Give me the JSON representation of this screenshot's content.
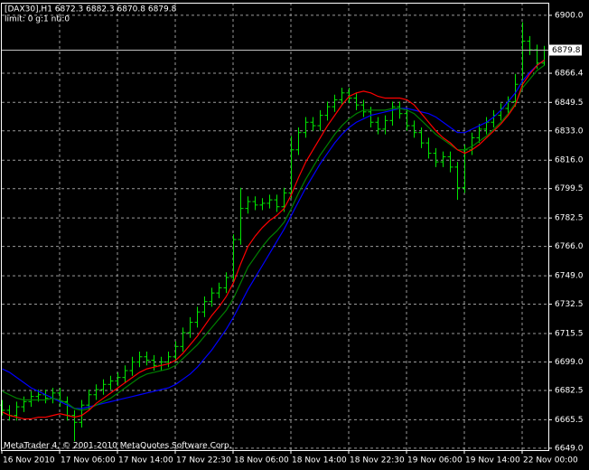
{
  "chart_data": {
    "type": "ohlc",
    "header": "[DAX30],H1  6872.3 6882.3 6870.8 6879.8",
    "subheader": "limit: 0 g:1 nti:0",
    "footer": "MetaTrader 4, © 2001-2010 MetaQuotes Software Corp.",
    "categories": [
      "16 Nov 2010",
      null,
      null,
      null,
      null,
      null,
      null,
      null,
      "17 Nov 06:00",
      null,
      null,
      null,
      null,
      null,
      null,
      null,
      "17 Nov 14:00",
      null,
      null,
      null,
      null,
      null,
      null,
      null,
      "17 Nov 22:30",
      null,
      null,
      null,
      null,
      null,
      null,
      null,
      "18 Nov 06:00",
      null,
      null,
      null,
      null,
      null,
      null,
      null,
      "18 Nov 14:00",
      null,
      null,
      null,
      null,
      null,
      null,
      null,
      "18 Nov 22:30",
      null,
      null,
      null,
      null,
      null,
      null,
      null,
      "19 Nov 06:00",
      null,
      null,
      null,
      null,
      null,
      null,
      null,
      "19 Nov 14:00",
      null,
      null,
      null,
      null,
      null,
      null,
      null,
      "22 Nov 00:00",
      null,
      null,
      null
    ],
    "open": [
      6674,
      6671,
      6668,
      6673,
      6676,
      6679,
      6680,
      6678,
      6681,
      6676,
      6668,
      6664,
      6674,
      6680,
      6683,
      6686,
      6688,
      6690,
      6694,
      6699,
      6702,
      6700,
      6697,
      6699,
      6702,
      6708,
      6716,
      6722,
      6728,
      6734,
      6739,
      6742,
      6748,
      6770,
      6788,
      6792,
      6790,
      6791,
      6793,
      6789,
      6797,
      6822,
      6832,
      6838,
      6836,
      6842,
      6847,
      6851,
      6855,
      6852,
      6848,
      6844,
      6838,
      6834,
      6839,
      6847,
      6843,
      6836,
      6832,
      6826,
      6820,
      6815,
      6818,
      6812,
      6800,
      6822,
      6829,
      6834,
      6838,
      6842,
      6846,
      6850,
      6860,
      6885,
      6880,
      6872.3
    ],
    "high": [
      6677,
      6674,
      6676,
      6679,
      6682,
      6683,
      6683,
      6684,
      6684,
      6679,
      6671,
      6677,
      6683,
      6686,
      6689,
      6691,
      6693,
      6697,
      6702,
      6705,
      6705,
      6703,
      6702,
      6705,
      6711,
      6719,
      6725,
      6731,
      6737,
      6742,
      6745,
      6751,
      6773,
      6800,
      6795,
      6795,
      6794,
      6796,
      6796,
      6800,
      6830,
      6835,
      6841,
      6841,
      6845,
      6850,
      6854,
      6858,
      6858,
      6855,
      6851,
      6847,
      6841,
      6842,
      6850,
      6850,
      6846,
      6839,
      6835,
      6829,
      6823,
      6821,
      6821,
      6815,
      6825,
      6832,
      6837,
      6841,
      6845,
      6849,
      6853,
      6866,
      6896,
      6888,
      6883,
      6882.3
    ],
    "low": [
      6668,
      6665,
      6665,
      6670,
      6673,
      6676,
      6675,
      6675,
      6673,
      6665,
      6653,
      6661,
      6671,
      6677,
      6680,
      6683,
      6685,
      6687,
      6691,
      6696,
      6697,
      6694,
      6694,
      6696,
      6699,
      6705,
      6713,
      6719,
      6725,
      6731,
      6736,
      6739,
      6745,
      6767,
      6785,
      6787,
      6787,
      6788,
      6786,
      6786,
      6794,
      6819,
      6829,
      6833,
      6833,
      6839,
      6844,
      6848,
      6849,
      6845,
      6841,
      6835,
      6831,
      6831,
      6836,
      6840,
      6833,
      6829,
      6823,
      6817,
      6812,
      6812,
      6809,
      6793,
      6797,
      6819,
      6826,
      6831,
      6835,
      6839,
      6843,
      6847,
      6857,
      6877,
      6869,
      6870.8
    ],
    "close": [
      6671,
      6668,
      6673,
      6676,
      6679,
      6680,
      6678,
      6681,
      6676,
      6668,
      6664,
      6674,
      6680,
      6683,
      6686,
      6688,
      6690,
      6694,
      6699,
      6702,
      6700,
      6697,
      6699,
      6702,
      6708,
      6716,
      6722,
      6728,
      6734,
      6739,
      6742,
      6748,
      6770,
      6788,
      6792,
      6790,
      6791,
      6793,
      6789,
      6797,
      6822,
      6832,
      6838,
      6836,
      6842,
      6847,
      6851,
      6855,
      6852,
      6848,
      6844,
      6838,
      6834,
      6839,
      6847,
      6843,
      6836,
      6832,
      6826,
      6820,
      6815,
      6818,
      6812,
      6800,
      6822,
      6829,
      6834,
      6838,
      6842,
      6846,
      6850,
      6860,
      6885,
      6880,
      6872.3,
      6879.8
    ],
    "bar_color": "#00e600",
    "series": [
      {
        "color": "#0000ff",
        "values": [
          6695,
          6693,
          6690,
          6687,
          6684,
          6682,
          6680,
          6678,
          6676,
          6674,
          6672,
          6672,
          6673,
          6674,
          6675,
          6676,
          6677,
          6678,
          6679,
          6680,
          6681,
          6682,
          6683,
          6684,
          6686,
          6689,
          6692,
          6696,
          6701,
          6706,
          6712,
          6718,
          6725,
          6733,
          6741,
          6748,
          6755,
          6762,
          6769,
          6776,
          6784,
          6792,
          6800,
          6807,
          6814,
          6820,
          6826,
          6831,
          6835,
          6838,
          6840,
          6842,
          6843,
          6844,
          6845,
          6846,
          6846,
          6845,
          6844,
          6843,
          6841,
          6838,
          6835,
          6832,
          6832,
          6834,
          6836,
          6838,
          6841,
          6845,
          6850,
          6855,
          6862,
          6867,
          6871,
          6874
        ]
      },
      {
        "color": "#008000",
        "values": [
          6682,
          6680,
          6678,
          6677,
          6677,
          6677,
          6677,
          6678,
          6677,
          6675,
          6672,
          6671,
          6672,
          6674,
          6676,
          6678,
          6681,
          6684,
          6687,
          6690,
          6692,
          6693,
          6694,
          6695,
          6697,
          6701,
          6705,
          6709,
          6714,
          6719,
          6724,
          6729,
          6736,
          6745,
          6754,
          6760,
          6766,
          6771,
          6775,
          6780,
          6788,
          6797,
          6805,
          6812,
          6819,
          6825,
          6831,
          6836,
          6840,
          6843,
          6845,
          6845,
          6845,
          6845,
          6846,
          6846,
          6845,
          6843,
          6839,
          6835,
          6831,
          6828,
          6825,
          6822,
          6822,
          6824,
          6827,
          6830,
          6834,
          6838,
          6843,
          6849,
          6858,
          6863,
          6868,
          6871
        ]
      },
      {
        "color": "#ff0000",
        "values": [
          6670,
          6668,
          6667,
          6666,
          6666,
          6667,
          6667,
          6668,
          6669,
          6668,
          6667,
          6668,
          6671,
          6675,
          6678,
          6681,
          6684,
          6687,
          6690,
          6693,
          6695,
          6696,
          6697,
          6698,
          6700,
          6704,
          6709,
          6714,
          6720,
          6726,
          6731,
          6737,
          6745,
          6756,
          6766,
          6772,
          6777,
          6781,
          6784,
          6788,
          6796,
          6806,
          6815,
          6822,
          6829,
          6836,
          6842,
          6848,
          6853,
          6855,
          6856,
          6855,
          6853,
          6852,
          6852,
          6852,
          6851,
          6848,
          6843,
          6838,
          6833,
          6829,
          6826,
          6822,
          6820,
          6822,
          6825,
          6829,
          6833,
          6837,
          6842,
          6848,
          6860,
          6866,
          6871,
          6874
        ]
      }
    ],
    "bid_line": 6879.8,
    "ylim": [
      6647.9,
      6907.3
    ],
    "yticks": [
      {
        "value": 6900,
        "label": "6900.0"
      },
      {
        "value": 6866.4,
        "label": "6866.4"
      },
      {
        "value": 6849.5,
        "label": "6849.5"
      },
      {
        "value": 6833,
        "label": "6833.0"
      },
      {
        "value": 6816,
        "label": "6816.0"
      },
      {
        "value": 6799.5,
        "label": "6799.5"
      },
      {
        "value": 6782.5,
        "label": "6782.5"
      },
      {
        "value": 6766,
        "label": "6766.0"
      },
      {
        "value": 6749,
        "label": "6749.0"
      },
      {
        "value": 6732.5,
        "label": "6732.5"
      },
      {
        "value": 6715.5,
        "label": "6715.5"
      },
      {
        "value": 6699,
        "label": "6699.0"
      },
      {
        "value": 6682.5,
        "label": "6682.5"
      },
      {
        "value": 6665.5,
        "label": "6665.5"
      },
      {
        "value": 6649,
        "label": "6649.0"
      }
    ],
    "grid": true
  }
}
